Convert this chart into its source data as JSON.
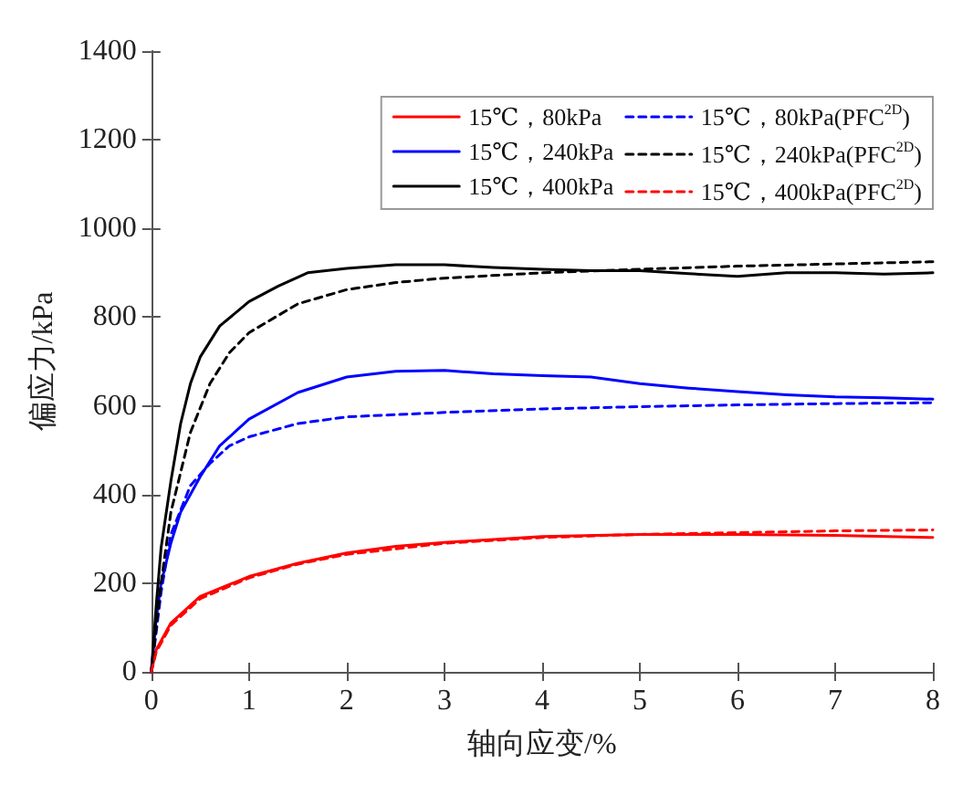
{
  "chart_data": {
    "type": "line",
    "xlabel": "轴向应变/%",
    "ylabel": "偏应力/kPa",
    "xlim": [
      0,
      8
    ],
    "ylim": [
      0,
      1400
    ],
    "xticks": [
      0,
      1,
      2,
      3,
      4,
      5,
      6,
      7,
      8
    ],
    "yticks": [
      0,
      200,
      400,
      600,
      800,
      1000,
      1200,
      1400
    ],
    "grid": false,
    "legend": "top right",
    "series": [
      {
        "name": "15℃，80kPa",
        "color": "#ff0000",
        "line_style": "solid",
        "x": [
          0,
          0.05,
          0.2,
          0.5,
          1,
          1.5,
          2,
          2.5,
          3,
          4,
          5,
          6,
          7,
          8
        ],
        "values": [
          0,
          50,
          110,
          170,
          215,
          245,
          268,
          283,
          292,
          305,
          310,
          310,
          308,
          303
        ]
      },
      {
        "name": "15℃，240kPa",
        "color": "#0000ff",
        "line_style": "solid",
        "x": [
          0,
          0.05,
          0.1,
          0.2,
          0.3,
          0.5,
          0.7,
          1,
          1.5,
          2,
          2.5,
          3,
          3.5,
          4,
          4.5,
          5,
          5.5,
          6,
          6.5,
          7,
          7.5,
          8
        ],
        "values": [
          0,
          120,
          200,
          290,
          360,
          440,
          510,
          570,
          630,
          665,
          678,
          680,
          672,
          668,
          665,
          650,
          640,
          632,
          625,
          620,
          618,
          615
        ]
      },
      {
        "name": "15℃，400kPa",
        "color": "#000000",
        "line_style": "solid",
        "x": [
          0,
          0.05,
          0.1,
          0.2,
          0.3,
          0.4,
          0.5,
          0.7,
          1,
          1.3,
          1.6,
          2,
          2.5,
          3,
          3.5,
          4,
          4.5,
          5,
          5.5,
          6,
          6.5,
          7,
          7.5,
          8
        ],
        "values": [
          0,
          150,
          280,
          430,
          560,
          650,
          710,
          780,
          835,
          870,
          900,
          910,
          918,
          918,
          912,
          908,
          905,
          905,
          898,
          892,
          900,
          900,
          897,
          900
        ]
      },
      {
        "name": "15℃，80kPa(PFC$^{2D}$)",
        "color": "#0000ff",
        "line_style": "dashed",
        "x": [
          0,
          0.1,
          0.2,
          0.4,
          0.6,
          0.8,
          1,
          1.5,
          2,
          3,
          4,
          5,
          6,
          7,
          8
        ],
        "values": [
          0,
          180,
          310,
          420,
          470,
          510,
          530,
          560,
          575,
          585,
          593,
          598,
          602,
          605,
          607
        ]
      },
      {
        "name": "15℃，240kPa(PFC$^{2D}$)",
        "color": "#000000",
        "line_style": "dashed",
        "x": [
          0,
          0.1,
          0.2,
          0.4,
          0.6,
          0.8,
          1,
          1.5,
          2,
          2.5,
          3,
          4,
          5,
          6,
          7,
          8
        ],
        "values": [
          0,
          200,
          360,
          540,
          650,
          720,
          765,
          830,
          862,
          878,
          888,
          900,
          908,
          915,
          920,
          925
        ]
      },
      {
        "name": "15℃，400kPa(PFC$^{2D}$)",
        "color": "#ff0000",
        "line_style": "dashed",
        "x": [
          0,
          0.05,
          0.2,
          0.5,
          1,
          1.5,
          2,
          3,
          4,
          5,
          6,
          7,
          8
        ],
        "values": [
          0,
          45,
          105,
          165,
          212,
          243,
          265,
          290,
          303,
          310,
          314,
          318,
          320
        ]
      }
    ]
  }
}
